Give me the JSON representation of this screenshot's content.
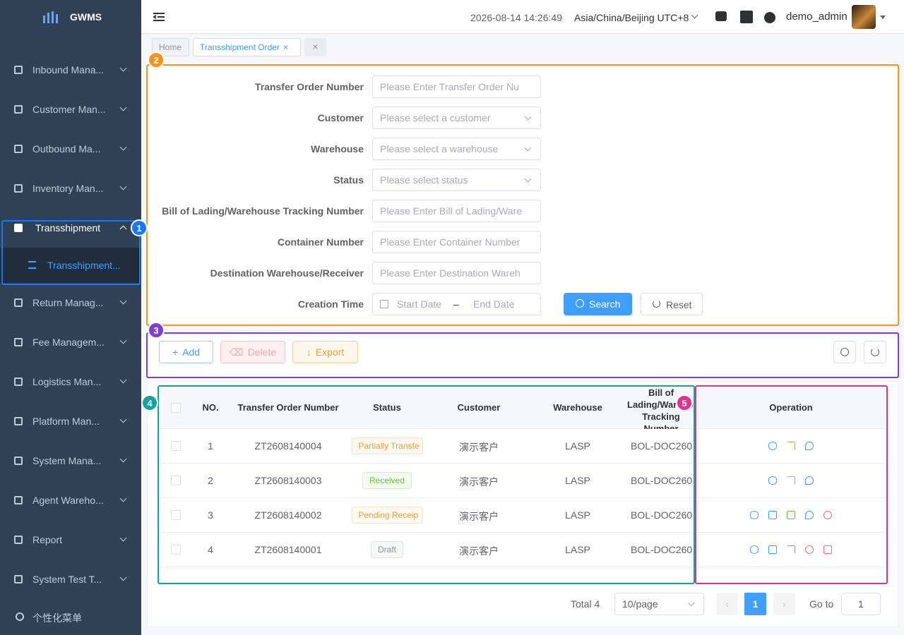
{
  "sidebar": {
    "logo": "GWMS",
    "menu": [
      "Inbound Mana...",
      "Customer Man...",
      "Outbound Ma...",
      "Inventory Man...",
      "Transshipment",
      "Return Manag...",
      "Fee Managem...",
      "Logistics Man...",
      "Platform Man...",
      "System Mana...",
      "Agent Wareho...",
      "Report",
      "System Test T..."
    ],
    "submenu": "Transshipment...",
    "footer": "个性化菜单"
  },
  "header": {
    "datetime": "2026-08-14 14:26:49",
    "timezone": "Asia/China/Beijing UTC+8",
    "user": "demo_admin"
  },
  "tabs": [
    "Home",
    "Transshipment Order"
  ],
  "filters": [
    {
      "label": "Transfer Order Number",
      "placeholder": "Please Enter Transfer Order Nu"
    },
    {
      "label": "Customer",
      "placeholder": "Please select a customer"
    },
    {
      "label": "Warehouse",
      "placeholder": "Please select a warehouse"
    },
    {
      "label": "Status",
      "placeholder": "Please select status"
    },
    {
      "label": "Bill of Lading/Warehouse Tracking Number",
      "placeholder": "Please Enter Bill of Lading/Ware"
    },
    {
      "label": "Container Number",
      "placeholder": "Please Enter Container Number"
    },
    {
      "label": "Destination Warehouse/Receiver",
      "placeholder": "Please Enter Destination Wareh"
    }
  ],
  "creation_time": {
    "label": "Creation Time",
    "start": "Start Date",
    "separator": "–",
    "end": "End Date"
  },
  "filter_buttons": [
    "Search",
    "Reset"
  ],
  "toolbar": [
    "Add",
    "Delete",
    "Export"
  ],
  "table": {
    "columns": [
      "NO.",
      "Transfer Order Number",
      "Status",
      "Customer",
      "Warehouse",
      "Bill of Lading/Warehouse Tracking Number",
      "Operation"
    ],
    "rows": [
      {
        "no": "1",
        "order": "ZT2608140004",
        "status": "Partially Transfe",
        "status_color": "#e6a23c",
        "customer": "演示客户",
        "warehouse": "LASP",
        "bol": "BOL-DOC260"
      },
      {
        "no": "2",
        "order": "ZT2608140003",
        "status": "Received",
        "status_color": "#67c23a",
        "customer": "演示客户",
        "warehouse": "LASP",
        "bol": "BOL-DOC260"
      },
      {
        "no": "3",
        "order": "ZT2608140002",
        "status": "Pending Receip",
        "status_color": "#e6a23c",
        "customer": "演示客户",
        "warehouse": "LASP",
        "bol": "BOL-DOC260"
      },
      {
        "no": "4",
        "order": "ZT2608140001",
        "status": "Draft",
        "status_color": "#909399",
        "customer": "演示客户",
        "warehouse": "LASP",
        "bol": "BOL-DOC260"
      }
    ]
  },
  "pagination": {
    "total": "Total 4",
    "page_size": "10/page",
    "page": "1",
    "goto": "Go to",
    "goto_value": "1"
  },
  "annotations": [
    "1",
    "2",
    "3",
    "4",
    "5"
  ]
}
